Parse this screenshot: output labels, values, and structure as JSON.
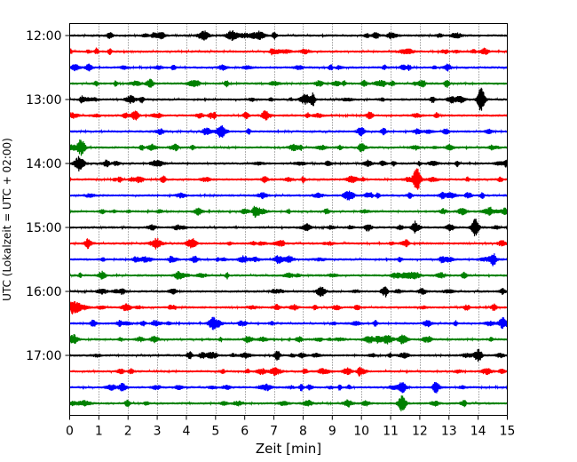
{
  "chart_data": {
    "type": "line",
    "title": "",
    "xlabel": "Zeit  [min]",
    "ylabel": "UTC (Lokalzeit = UTC + 02:00)",
    "xlim": [
      0,
      15
    ],
    "x_ticks": [
      0,
      1,
      2,
      3,
      4,
      5,
      6,
      7,
      8,
      9,
      10,
      11,
      12,
      13,
      14,
      15
    ],
    "x_tick_labels": [
      "0",
      "1",
      "2",
      "3",
      "4",
      "5",
      "6",
      "7",
      "8",
      "9",
      "10",
      "11",
      "12",
      "13",
      "14",
      "15"
    ],
    "y_tick_labels": [
      "12:00",
      "13:00",
      "14:00",
      "15:00",
      "16:00",
      "17:00"
    ],
    "grid": "vertical dotted at each minute",
    "trace_interval_min": 15,
    "start_time": "12:00",
    "color_cycle": [
      "#000000",
      "#ff0000",
      "#0000ff",
      "#008000"
    ],
    "events": [
      {
        "trace": "13:00",
        "minute": 14.1,
        "amplitude": "large"
      },
      {
        "trace": "13:45",
        "minute": 0.4,
        "amplitude": "medium"
      },
      {
        "trace": "14:15",
        "minute": 11.9,
        "amplitude": "large"
      },
      {
        "trace": "15:00",
        "minute": 13.9,
        "amplitude": "medium"
      },
      {
        "trace": "17:30",
        "minute": 11.4,
        "amplitude": "small"
      },
      {
        "trace": "17:45",
        "minute": 11.4,
        "amplitude": "medium"
      }
    ]
  }
}
